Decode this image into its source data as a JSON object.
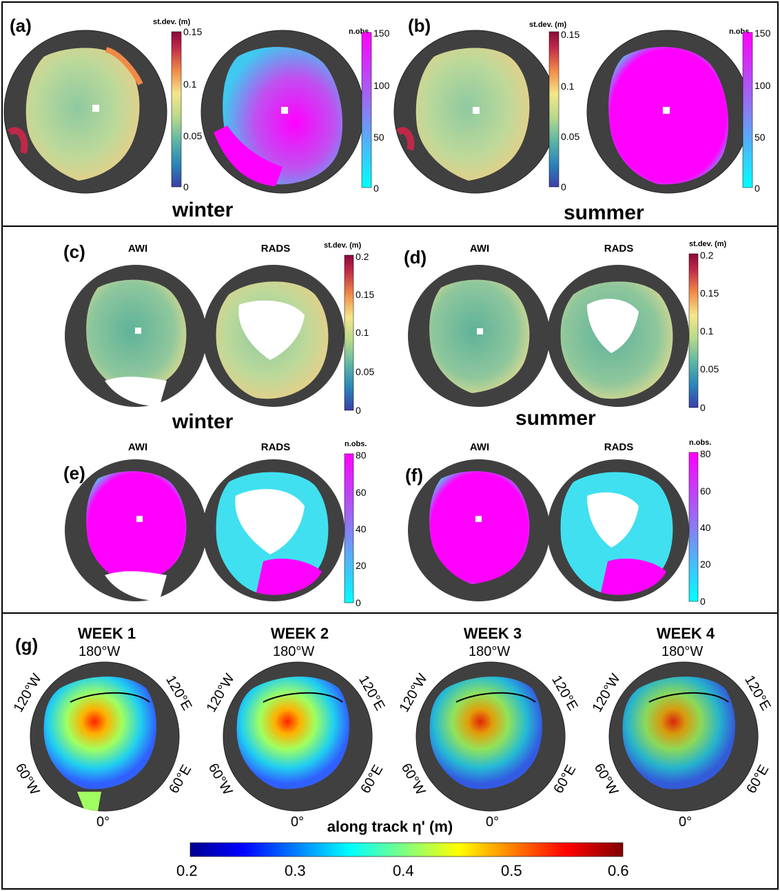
{
  "panels": {
    "a": "(a)",
    "b": "(b)",
    "c": "(c)",
    "d": "(d)",
    "e": "(e)",
    "f": "(f)",
    "g": "(g)"
  },
  "seasons": {
    "winter": "winter",
    "summer": "summer"
  },
  "maps": {
    "awi": "AWI",
    "rads": "RADS"
  },
  "colorbars": {
    "stdev_title": "st.dev. (m)",
    "nobs_title": "n.obs.",
    "ab_stdev_ticks": [
      "0.15",
      "0.1",
      "0.05",
      "0"
    ],
    "ab_nobs_ticks": [
      "150",
      "100",
      "50",
      "0"
    ],
    "cd_stdev_ticks": [
      "0.2",
      "0.15",
      "0.1",
      "0.05",
      "0"
    ],
    "ef_nobs_ticks": [
      "80",
      "60",
      "40",
      "20",
      "0"
    ],
    "g_title": "along track η' (m)",
    "g_ticks": [
      "0.2",
      "0.3",
      "0.4",
      "0.5",
      "0.6"
    ],
    "colors": {
      "parula_like": [
        "#3b3fa8",
        "#2a86b8",
        "#5fb7a4",
        "#b7d98a",
        "#f4d47a",
        "#f08a48",
        "#c02848",
        "#8a0a3a"
      ],
      "nobs": [
        "#00ffff",
        "#ff00ff"
      ],
      "jet": [
        "#00008f",
        "#0000ff",
        "#00ffff",
        "#ffff00",
        "#ff0000",
        "#800000"
      ],
      "land": "#404040"
    }
  },
  "weeks": [
    "WEEK 1",
    "WEEK 2",
    "WEEK 3",
    "WEEK 4"
  ],
  "polar_labels": {
    "top": "180°W",
    "upper_left": "120°W",
    "upper_right": "120°E",
    "lower_left": "60°W",
    "lower_right": "60°E",
    "bottom": "0°"
  }
}
